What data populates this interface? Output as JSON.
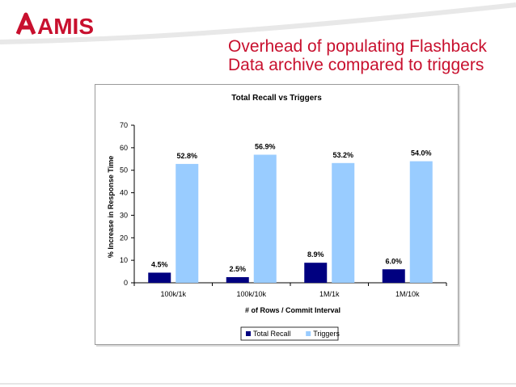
{
  "brand": {
    "logo_text": "AMIS",
    "logo_color": "#c8102e"
  },
  "slide": {
    "title_lines": [
      "Overhead of populating Flashback",
      "Data archive compared to triggers"
    ],
    "title_color": "#c8102e"
  },
  "chart_data": {
    "type": "bar",
    "title": "Total Recall vs Triggers",
    "xlabel": "# of Rows / Commit Interval",
    "ylabel": "% Increase in Response Time",
    "categories": [
      "100k/1k",
      "100k/10k",
      "1M/1k",
      "1M/10k"
    ],
    "series": [
      {
        "name": "Total Recall",
        "values": [
          4.5,
          2.5,
          8.9,
          6.0
        ],
        "labels": [
          "4.5%",
          "2.5%",
          "8.9%",
          "6.0%"
        ],
        "color": "#000080"
      },
      {
        "name": "Triggers",
        "values": [
          52.8,
          56.9,
          53.2,
          54.0
        ],
        "labels": [
          "52.8%",
          "56.9%",
          "53.2%",
          "54.0%"
        ],
        "color": "#99ccff"
      }
    ],
    "ylim": [
      0,
      70
    ],
    "yticks": [
      0,
      10,
      20,
      30,
      40,
      50,
      60,
      70
    ],
    "grid": false,
    "legend_position": "bottom"
  }
}
